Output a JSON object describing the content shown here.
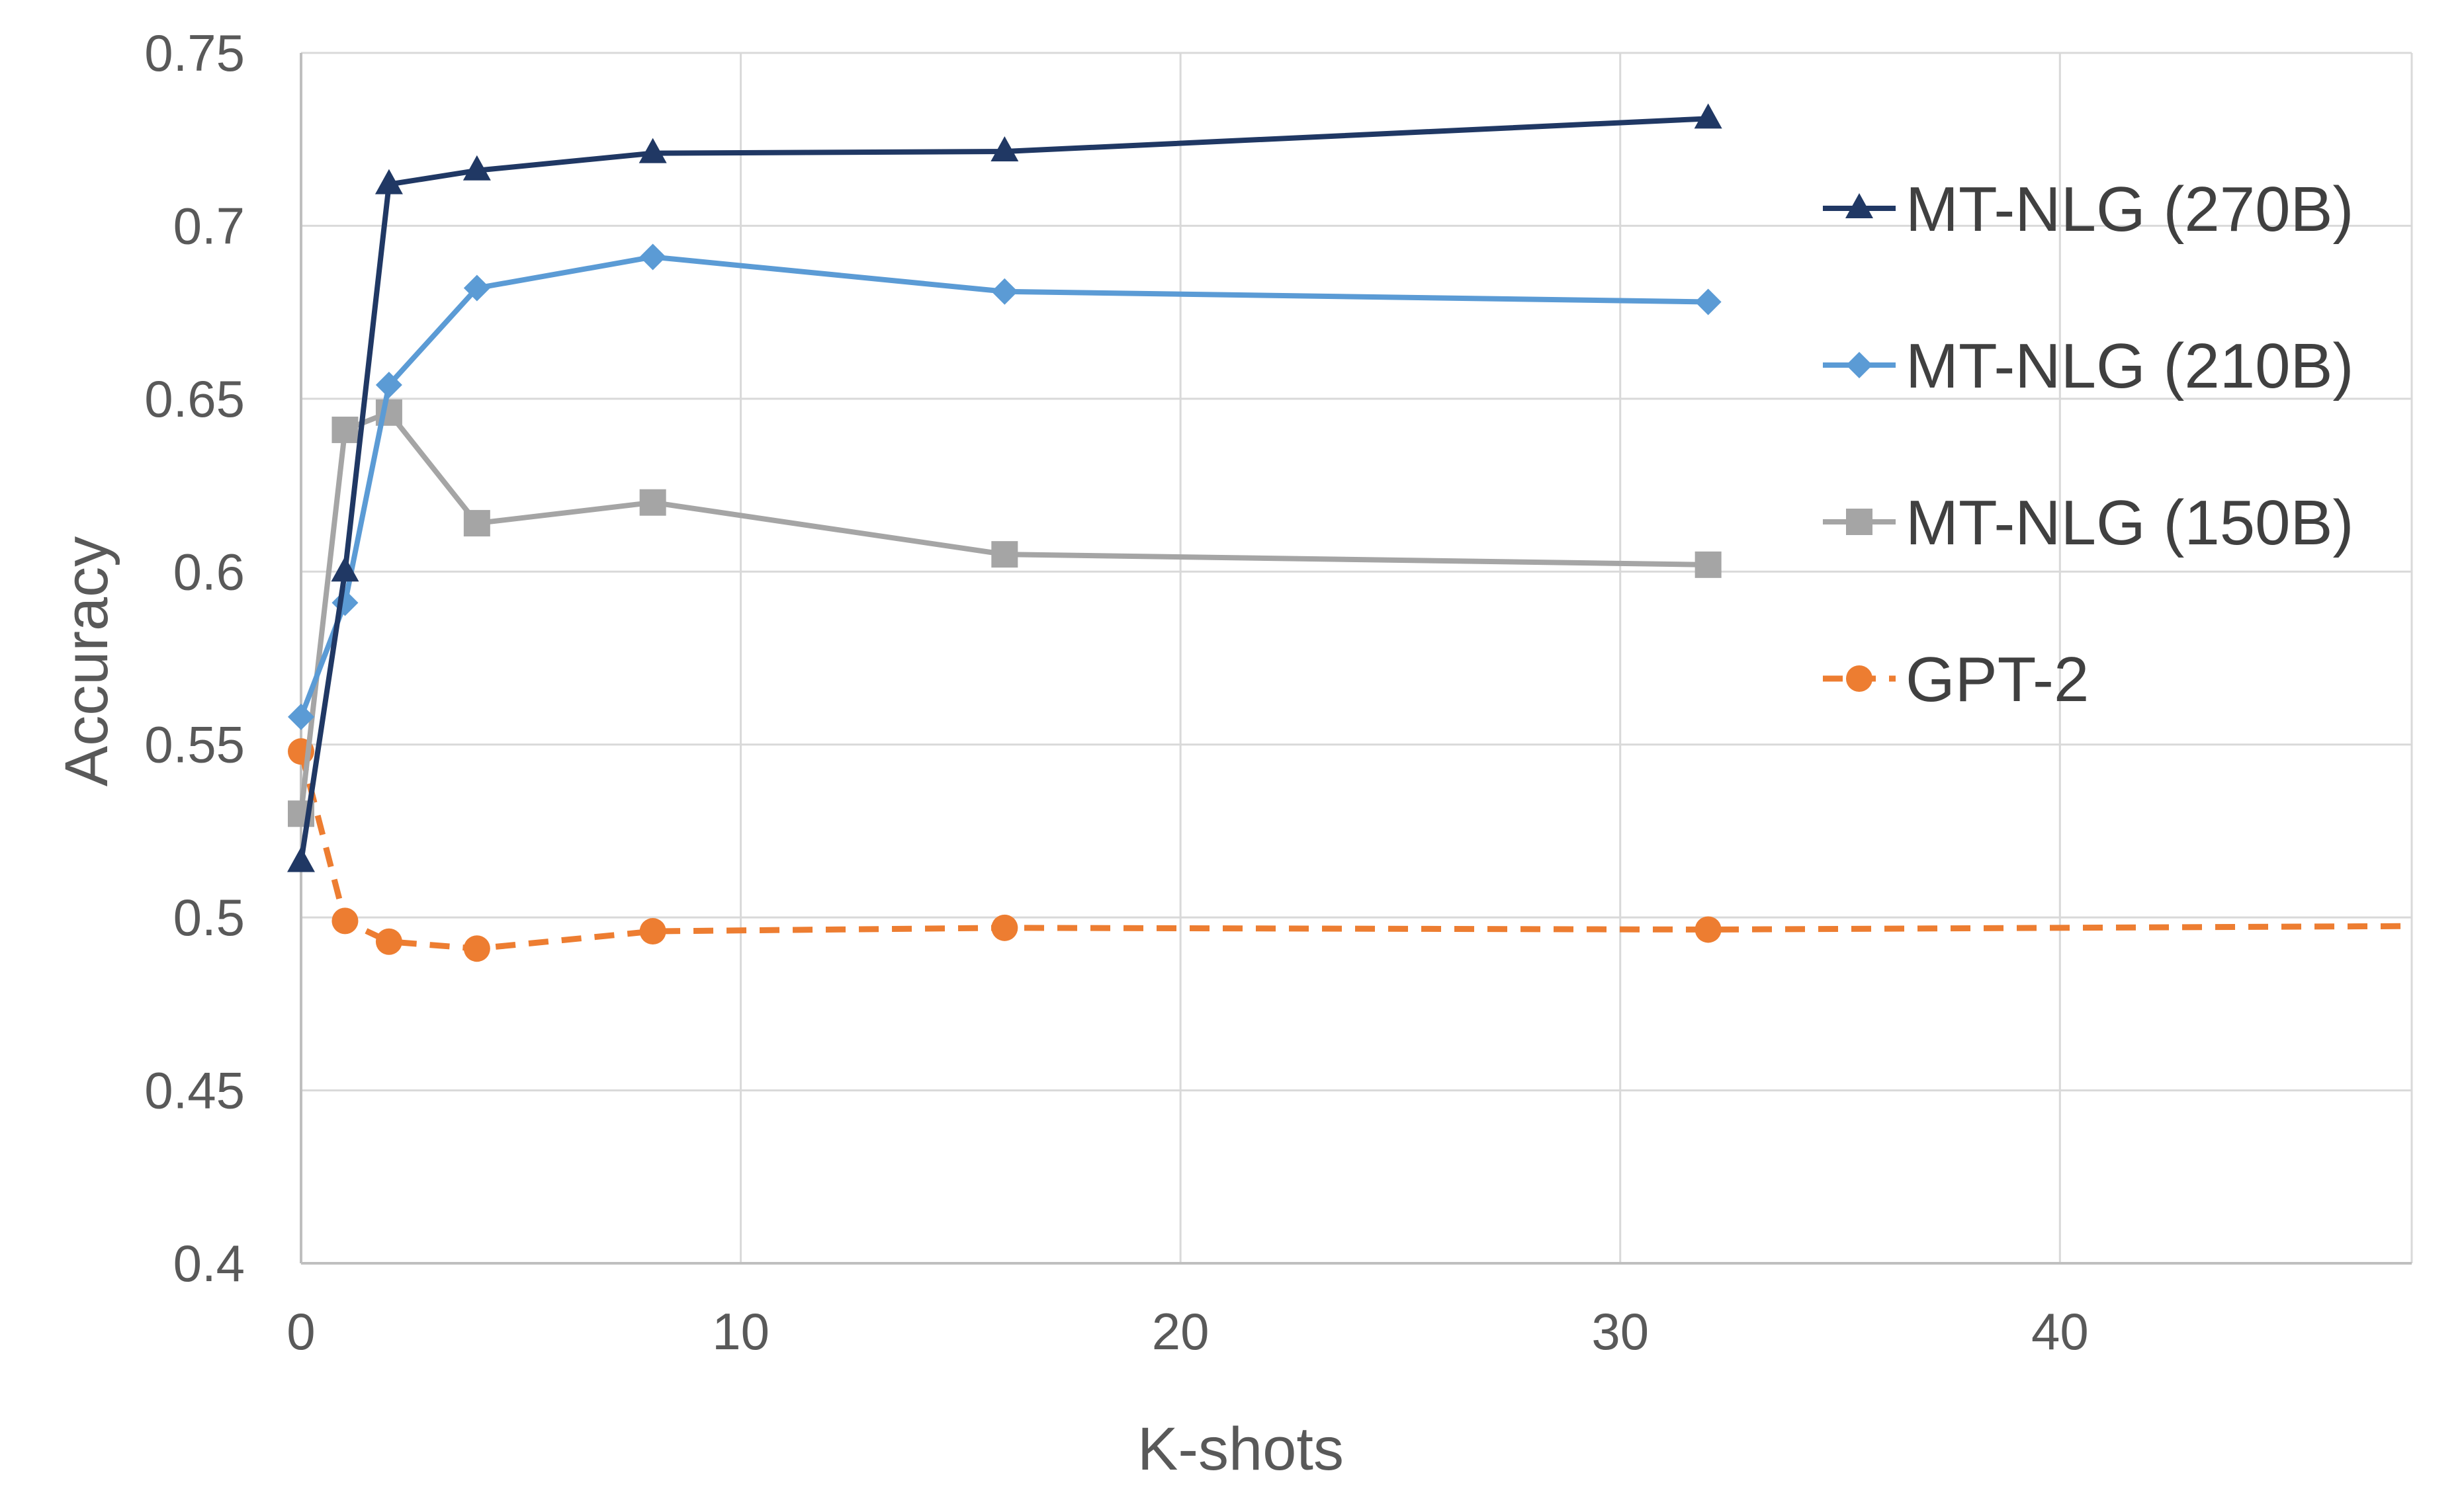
{
  "chart_data": {
    "type": "line",
    "title": "",
    "xlabel": "K-shots",
    "ylabel": "Accuracy",
    "xlim": [
      0,
      48
    ],
    "ylim": [
      0.4,
      0.75
    ],
    "x_ticks": [
      0,
      10,
      20,
      30,
      40
    ],
    "x_tick_labels": [
      "0",
      "10",
      "20",
      "30",
      "40"
    ],
    "y_ticks": [
      0.4,
      0.45,
      0.5,
      0.55,
      0.6,
      0.65,
      0.7,
      0.75
    ],
    "y_tick_labels": [
      "0.4",
      "0.45",
      "0.5",
      "0.55",
      "0.6",
      "0.65",
      "0.7",
      "0.75"
    ],
    "grid": true,
    "legend_position": "right",
    "series": [
      {
        "name": "MT-NLG (270B)",
        "color": "#203864",
        "marker": "triangle",
        "dashed": false,
        "x": [
          0,
          1,
          2,
          4,
          8,
          16,
          32
        ],
        "y": [
          0.516,
          0.6,
          0.712,
          0.716,
          0.721,
          0.7215,
          0.731
        ]
      },
      {
        "name": "MT-NLG (210B)",
        "color": "#5B9BD5",
        "marker": "diamond",
        "dashed": false,
        "x": [
          0,
          1,
          2,
          4,
          8,
          16,
          32
        ],
        "y": [
          0.558,
          0.591,
          0.654,
          0.682,
          0.691,
          0.681,
          0.678
        ]
      },
      {
        "name": "MT-NLG (150B)",
        "color": "#A5A5A5",
        "marker": "square",
        "dashed": false,
        "x": [
          0,
          1,
          2,
          4,
          8,
          16,
          32
        ],
        "y": [
          0.53,
          0.641,
          0.646,
          0.614,
          0.62,
          0.605,
          0.602
        ]
      },
      {
        "name": "GPT-2",
        "color": "#ED7D31",
        "marker": "circle",
        "dashed": true,
        "x": [
          0,
          1,
          2,
          4,
          8,
          16,
          32,
          48
        ],
        "y": [
          0.548,
          0.499,
          0.493,
          0.491,
          0.496,
          0.497,
          0.4965,
          0.4975
        ],
        "marker_count": 7
      }
    ]
  }
}
